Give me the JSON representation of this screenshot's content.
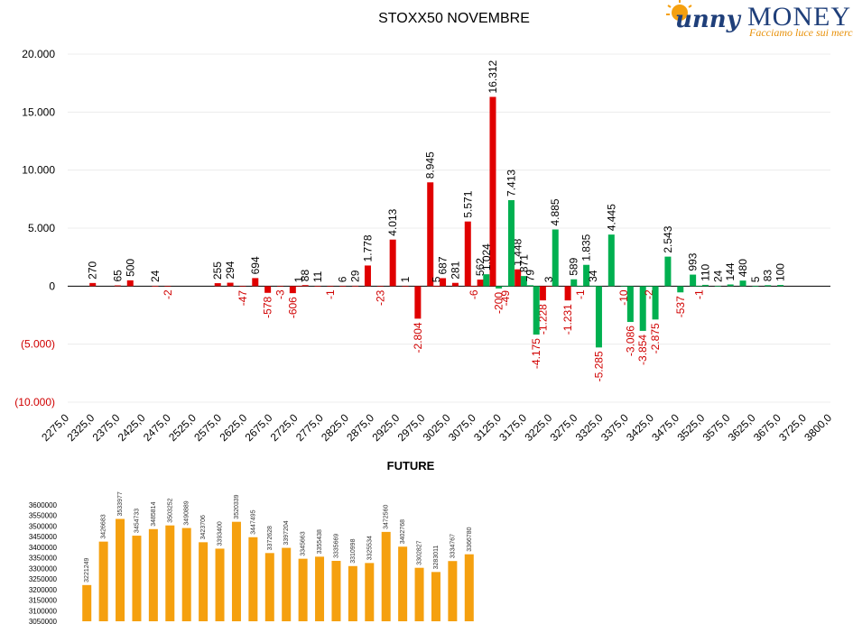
{
  "logo": {
    "brand_script": "Sunny",
    "brand_main": "MONEY",
    "tagline": "Facciamo luce sui mercati"
  },
  "colors": {
    "call": "#e00000",
    "put": "#00b050",
    "future": "#f5a00f",
    "negative_label": "#d00000"
  },
  "chart_data": [
    {
      "type": "bar",
      "title": "STOXX50 NOVEMBRE",
      "xlabel": "",
      "ylabel": "",
      "ylim": [
        -10000,
        20000
      ],
      "y_ticks": [
        {
          "value": 20000,
          "label": "20.000"
        },
        {
          "value": 15000,
          "label": "15.000"
        },
        {
          "value": 10000,
          "label": "10.000"
        },
        {
          "value": 5000,
          "label": "5.000"
        },
        {
          "value": 0,
          "label": "0"
        },
        {
          "value": -5000,
          "label": "(5.000)"
        },
        {
          "value": -10000,
          "label": "(10.000)"
        }
      ],
      "x_ticks": [
        "2275,0",
        "2325,0",
        "2375,0",
        "2425,0",
        "2475,0",
        "2525,0",
        "2575,0",
        "2625,0",
        "2675,0",
        "2725,0",
        "2775,0",
        "2825,0",
        "2875,0",
        "2925,0",
        "2975,0",
        "3025,0",
        "3075,0",
        "3125,0",
        "3175,0",
        "3225,0",
        "3275,0",
        "3325,0",
        "3375,0",
        "3425,0",
        "3475,0",
        "3525,0",
        "3575,0",
        "3625,0",
        "3675,0",
        "3725,0",
        "3800,0"
      ],
      "grid": true,
      "series": [
        {
          "color": "#e00000",
          "points": [
            {
              "x": 2325,
              "y": 270,
              "label": "270"
            },
            {
              "x": 2375,
              "y": 65,
              "label": "65"
            },
            {
              "x": 2400,
              "y": 500,
              "label": "500"
            },
            {
              "x": 2450,
              "y": 24,
              "label": "24"
            },
            {
              "x": 2475,
              "y": -2,
              "label": "-2"
            },
            {
              "x": 2575,
              "y": 255,
              "label": "255"
            },
            {
              "x": 2600,
              "y": 294,
              "label": "294"
            },
            {
              "x": 2625,
              "y": -47,
              "label": "-47"
            },
            {
              "x": 2650,
              "y": 694,
              "label": "694"
            },
            {
              "x": 2675,
              "y": -578,
              "label": "-578"
            },
            {
              "x": 2700,
              "y": -3,
              "label": "-3"
            },
            {
              "x": 2725,
              "y": -606,
              "label": "-606"
            },
            {
              "x": 2737,
              "y": 1,
              "label": "1"
            },
            {
              "x": 2750,
              "y": 88,
              "label": "88"
            },
            {
              "x": 2775,
              "y": 11,
              "label": "11"
            },
            {
              "x": 2800,
              "y": -1,
              "label": "-1"
            },
            {
              "x": 2825,
              "y": 6,
              "label": "6"
            },
            {
              "x": 2850,
              "y": 29,
              "label": "29"
            },
            {
              "x": 2875,
              "y": 1778,
              "label": "1.778"
            },
            {
              "x": 2900,
              "y": -23,
              "label": "-23"
            },
            {
              "x": 2925,
              "y": 4013,
              "label": "4.013"
            },
            {
              "x": 2950,
              "y": 1,
              "label": "1"
            },
            {
              "x": 2975,
              "y": -2804,
              "label": "-2.804"
            },
            {
              "x": 3000,
              "y": 8945,
              "label": "8.945"
            },
            {
              "x": 3012,
              "y": 5,
              "label": "5"
            },
            {
              "x": 3025,
              "y": 687,
              "label": "687"
            },
            {
              "x": 3050,
              "y": 281,
              "label": "281"
            },
            {
              "x": 3075,
              "y": 5571,
              "label": "5.571"
            },
            {
              "x": 3087,
              "y": -6,
              "label": "-6"
            },
            {
              "x": 3100,
              "y": 562,
              "label": "562"
            },
            {
              "x": 3125,
              "y": 16312,
              "label": "16.312"
            },
            {
              "x": 3175,
              "y": 1448,
              "label": "1.448"
            },
            {
              "x": 3225,
              "y": -1228,
              "label": "-1.228"
            },
            {
              "x": 3237,
              "y": 3,
              "label": "3"
            },
            {
              "x": 3275,
              "y": -1231,
              "label": "-1.231"
            }
          ]
        },
        {
          "color": "#00b050",
          "points": [
            {
              "x": 3112,
              "y": 1024,
              "label": "1.024"
            },
            {
              "x": 3137,
              "y": -200,
              "label": "-200"
            },
            {
              "x": 3150,
              "y": -49,
              "label": "-49"
            },
            {
              "x": 3162,
              "y": 7413,
              "label": "7.413"
            },
            {
              "x": 3187,
              "y": 871,
              "label": "871"
            },
            {
              "x": 3200,
              "y": 79,
              "label": "79"
            },
            {
              "x": 3212,
              "y": -4175,
              "label": "-4.175"
            },
            {
              "x": 3250,
              "y": 4885,
              "label": "4.885"
            },
            {
              "x": 3287,
              "y": 589,
              "label": "589"
            },
            {
              "x": 3300,
              "y": -1,
              "label": "-1"
            },
            {
              "x": 3312,
              "y": 1835,
              "label": "1.835"
            },
            {
              "x": 3325,
              "y": 34,
              "label": "34"
            },
            {
              "x": 3337,
              "y": -5285,
              "label": "-5.285"
            },
            {
              "x": 3362,
              "y": 4445,
              "label": "4.445"
            },
            {
              "x": 3387,
              "y": -10,
              "label": "-10"
            },
            {
              "x": 3400,
              "y": -3086,
              "label": "-3.086"
            },
            {
              "x": 3425,
              "y": -3854,
              "label": "-3.854"
            },
            {
              "x": 3437,
              "y": -2,
              "label": "-2"
            },
            {
              "x": 3450,
              "y": -2875,
              "label": "-2.875"
            },
            {
              "x": 3475,
              "y": 2543,
              "label": "2.543"
            },
            {
              "x": 3500,
              "y": -537,
              "label": "-537"
            },
            {
              "x": 3525,
              "y": 993,
              "label": "993"
            },
            {
              "x": 3537,
              "y": -1,
              "label": "-1"
            },
            {
              "x": 3550,
              "y": 110,
              "label": "110"
            },
            {
              "x": 3575,
              "y": 24,
              "label": "24"
            },
            {
              "x": 3600,
              "y": 144,
              "label": "144"
            },
            {
              "x": 3625,
              "y": 480,
              "label": "480"
            },
            {
              "x": 3650,
              "y": 5,
              "label": "5"
            },
            {
              "x": 3675,
              "y": 83,
              "label": "83"
            },
            {
              "x": 3700,
              "y": 100,
              "label": "100"
            }
          ]
        }
      ]
    },
    {
      "type": "bar",
      "title": "FUTURE",
      "xlabel": "",
      "ylabel": "",
      "ylim": [
        3050000,
        3600000
      ],
      "y_ticks": [
        "3600000",
        "3550000",
        "3500000",
        "3450000",
        "3400000",
        "3350000",
        "3300000",
        "3250000",
        "3200000",
        "3150000",
        "3100000",
        "3050000"
      ],
      "grid": false,
      "color": "#f5a00f",
      "values": [
        3221249,
        3426683,
        3533977,
        3454733,
        3485814,
        3503252,
        3490889,
        3423706,
        3393400,
        3520339,
        3447495,
        3372628,
        3397204,
        3345663,
        3355438,
        3335669,
        3310998,
        3325534,
        3472560,
        3402768,
        3302827,
        3283011,
        3334767,
        3366780
      ]
    }
  ]
}
